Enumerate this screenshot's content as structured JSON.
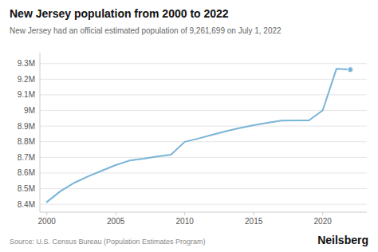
{
  "chart_data": {
    "type": "line",
    "title": "New Jersey population from 2000 to 2022",
    "subtitle": "New Jersey had an official estimated population of 9,261,699 on July 1, 2022",
    "annotations": [
      "Source: U.S. Census Bureau (Population Estimates Program)",
      "Neilsberg"
    ],
    "x": [
      2000,
      2001,
      2002,
      2003,
      2004,
      2005,
      2006,
      2007,
      2008,
      2009,
      2010,
      2011,
      2012,
      2013,
      2014,
      2015,
      2016,
      2017,
      2018,
      2019,
      2020,
      2021,
      2022
    ],
    "values": [
      8414350,
      8484431,
      8537516,
      8578735,
      8615083,
      8651049,
      8679842,
      8691764,
      8705798,
      8716960,
      8799446,
      8821155,
      8844942,
      8868004,
      8888008,
      8905960,
      8921649,
      8935004,
      8936574,
      8936574,
      9000000,
      9267113,
      9261699
    ],
    "color": "#7ab4d8",
    "marker": "endpoint",
    "xlim": [
      1999.5,
      2023.2
    ],
    "xticks": [
      2000,
      2005,
      2010,
      2015,
      2020
    ],
    "ylim": [
      8350000,
      9370000
    ],
    "yticks": [
      {
        "value": 8400000,
        "label": "8.4M"
      },
      {
        "value": 8500000,
        "label": "8.5M"
      },
      {
        "value": 8600000,
        "label": "8.6M"
      },
      {
        "value": 8700000,
        "label": "8.7M"
      },
      {
        "value": 8800000,
        "label": "8.8M"
      },
      {
        "value": 8900000,
        "label": "8.9M"
      },
      {
        "value": 9000000,
        "label": "9M"
      },
      {
        "value": 9100000,
        "label": "9.1M"
      },
      {
        "value": 9200000,
        "label": "9.2M"
      },
      {
        "value": 9300000,
        "label": "9.3M"
      }
    ],
    "grid": true
  }
}
